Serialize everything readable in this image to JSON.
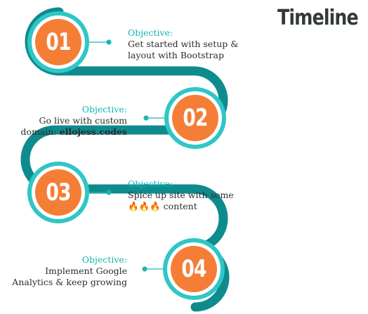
{
  "title": "Timeline",
  "colors": {
    "track": "#0e8b8d",
    "ring": "#30c6c6",
    "badge": "#f47e35",
    "label": "#14b3b3",
    "title": "#33393c"
  },
  "steps": [
    {
      "number": "01",
      "label": "Objective:",
      "lines": [
        "Get started with setup &",
        "layout with Bootstrap"
      ]
    },
    {
      "number": "02",
      "label": "Objective:",
      "lines": [
        "Go live with custom"
      ],
      "domain_prefix": "domain: ",
      "domain": "ellojess.codes"
    },
    {
      "number": "03",
      "label": "Objective:",
      "lines": [
        "Spice up site with some"
      ],
      "emoji": "🔥🔥🔥",
      "emoji_suffix": " content"
    },
    {
      "number": "04",
      "label": "Objective:",
      "lines": [
        "Implement Google",
        "Analytics & keep growing"
      ]
    }
  ]
}
